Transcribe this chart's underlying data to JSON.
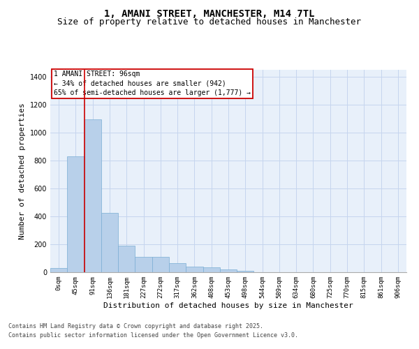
{
  "title_line1": "1, AMANI STREET, MANCHESTER, M14 7TL",
  "title_line2": "Size of property relative to detached houses in Manchester",
  "xlabel": "Distribution of detached houses by size in Manchester",
  "ylabel": "Number of detached properties",
  "bar_color": "#b8d0ea",
  "bar_edge_color": "#7aadd4",
  "background_color": "#e8f0fa",
  "categories": [
    "0sqm",
    "45sqm",
    "91sqm",
    "136sqm",
    "181sqm",
    "227sqm",
    "272sqm",
    "317sqm",
    "362sqm",
    "408sqm",
    "453sqm",
    "498sqm",
    "544sqm",
    "589sqm",
    "634sqm",
    "680sqm",
    "725sqm",
    "770sqm",
    "815sqm",
    "861sqm",
    "906sqm"
  ],
  "values": [
    28,
    830,
    1095,
    425,
    190,
    110,
    110,
    65,
    40,
    35,
    20,
    8,
    0,
    0,
    0,
    0,
    0,
    0,
    0,
    0,
    0
  ],
  "ylim": [
    0,
    1450
  ],
  "yticks": [
    0,
    200,
    400,
    600,
    800,
    1000,
    1200,
    1400
  ],
  "annotation_text": "1 AMANI STREET: 96sqm\n← 34% of detached houses are smaller (942)\n65% of semi-detached houses are larger (1,777) →",
  "red_line_bin": 2,
  "footer_line1": "Contains HM Land Registry data © Crown copyright and database right 2025.",
  "footer_line2": "Contains public sector information licensed under the Open Government Licence v3.0.",
  "grid_color": "#c5d5ee",
  "red_color": "#cc0000",
  "title_fontsize": 10,
  "subtitle_fontsize": 9,
  "tick_fontsize": 6.5,
  "ylabel_fontsize": 8,
  "xlabel_fontsize": 8,
  "footer_fontsize": 6,
  "annot_fontsize": 7
}
